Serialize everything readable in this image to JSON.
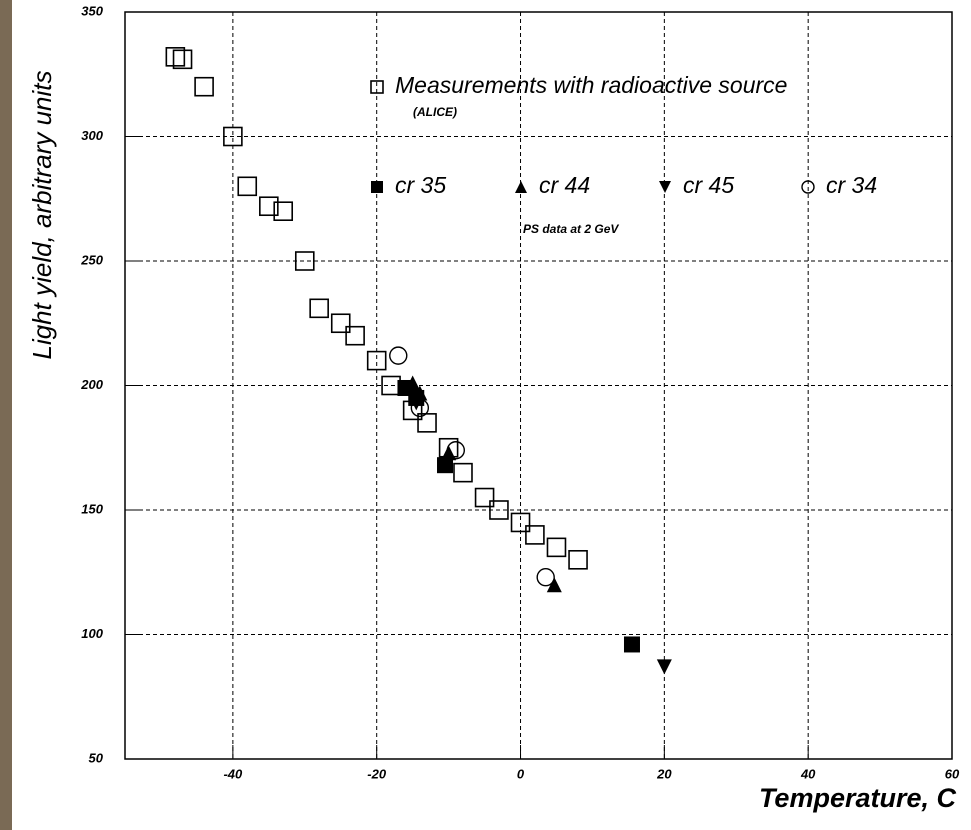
{
  "chart_data": {
    "type": "scatter",
    "xlabel": "Temperature, C",
    "ylabel": "Light yield, arbitrary units",
    "xlim": [
      -55,
      60
    ],
    "ylim": [
      50,
      350
    ],
    "xticks": [
      -40,
      -20,
      0,
      20,
      40,
      60
    ],
    "yticks": [
      50,
      100,
      150,
      200,
      250,
      300,
      350
    ],
    "grid": true,
    "annotations": [
      "(ALICE)",
      "PS data at 2 GeV"
    ],
    "series": [
      {
        "name": "Measurements with radioactive source",
        "color": "#000000",
        "marker": "square-open",
        "x": [
          -48,
          -47,
          -44,
          -40,
          -38,
          -35,
          -33,
          -30,
          -28,
          -25,
          -23,
          -20,
          -18,
          -15,
          -13,
          -10,
          -8,
          -5,
          -3,
          0,
          2,
          5,
          8
        ],
        "values": [
          332,
          331,
          320,
          300,
          280,
          272,
          270,
          250,
          231,
          225,
          220,
          210,
          200,
          190,
          185,
          175,
          165,
          155,
          150,
          145,
          140,
          135,
          130
        ]
      },
      {
        "name": "cr 35",
        "color": "#000000",
        "marker": "square",
        "x": [
          -16,
          -14.5,
          -10.5,
          15.5
        ],
        "values": [
          199,
          195,
          168,
          96
        ]
      },
      {
        "name": "cr 44",
        "color": "#000000",
        "marker": "triangle",
        "x": [
          -15,
          -14,
          -10,
          4.7
        ],
        "values": [
          201,
          197,
          173,
          120
        ]
      },
      {
        "name": "cr 45",
        "color": "#000000",
        "marker": "triangle-down",
        "x": [
          -14.5,
          20
        ],
        "values": [
          193,
          87
        ]
      },
      {
        "name": "cr 34",
        "color": "#000000",
        "marker": "circle-open",
        "x": [
          -17,
          -14,
          -9,
          3.5
        ],
        "values": [
          212,
          191,
          174,
          123
        ]
      }
    ]
  }
}
